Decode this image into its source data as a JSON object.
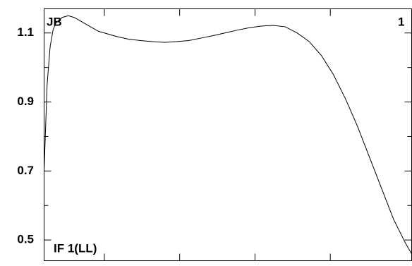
{
  "chart_data": {
    "type": "line",
    "corner_labels": {
      "top_left": "JB",
      "top_right": "1",
      "bottom_left": "IF 1(LL)"
    },
    "x": [
      0,
      4,
      8,
      12,
      16,
      24,
      32,
      40,
      48,
      56,
      64,
      72,
      80,
      96,
      112,
      128,
      144,
      160,
      176,
      192,
      208,
      224,
      240,
      256,
      272,
      288,
      304,
      320,
      336,
      352,
      368,
      384,
      400,
      416,
      432,
      448,
      464,
      480,
      488
    ],
    "values": [
      0.7,
      0.95,
      1.06,
      1.11,
      1.13,
      1.145,
      1.15,
      1.145,
      1.135,
      1.125,
      1.115,
      1.105,
      1.1,
      1.09,
      1.082,
      1.078,
      1.075,
      1.073,
      1.075,
      1.078,
      1.085,
      1.092,
      1.1,
      1.108,
      1.115,
      1.12,
      1.122,
      1.118,
      1.1,
      1.075,
      1.035,
      0.98,
      0.91,
      0.83,
      0.74,
      0.65,
      0.56,
      0.49,
      0.46
    ],
    "color": "#000000",
    "xlim": [
      0,
      488
    ],
    "xticks": [
      80,
      180,
      280,
      380
    ],
    "ylim": [
      0.44,
      1.17
    ],
    "yticks": [
      0.5,
      0.7,
      0.9,
      1.1
    ],
    "yminorticks": [
      0.6,
      0.8,
      1.0
    ]
  }
}
